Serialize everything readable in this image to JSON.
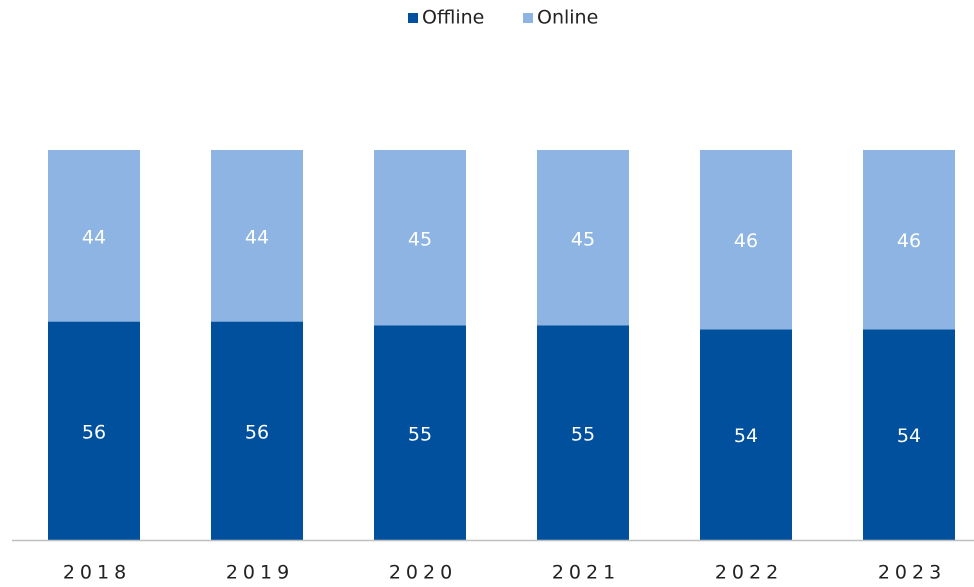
{
  "chart_data": {
    "type": "stacked_bar",
    "categories": [
      "2018",
      "2019",
      "2020",
      "2021",
      "2022",
      "2023"
    ],
    "series": [
      {
        "name": "Offline",
        "color": "#00509d",
        "values": [
          56,
          56,
          55,
          55,
          54,
          54
        ]
      },
      {
        "name": "Online",
        "color": "#8db4e2",
        "values": [
          44,
          44,
          45,
          45,
          46,
          46
        ]
      }
    ],
    "ylim": [
      0,
      100
    ]
  }
}
